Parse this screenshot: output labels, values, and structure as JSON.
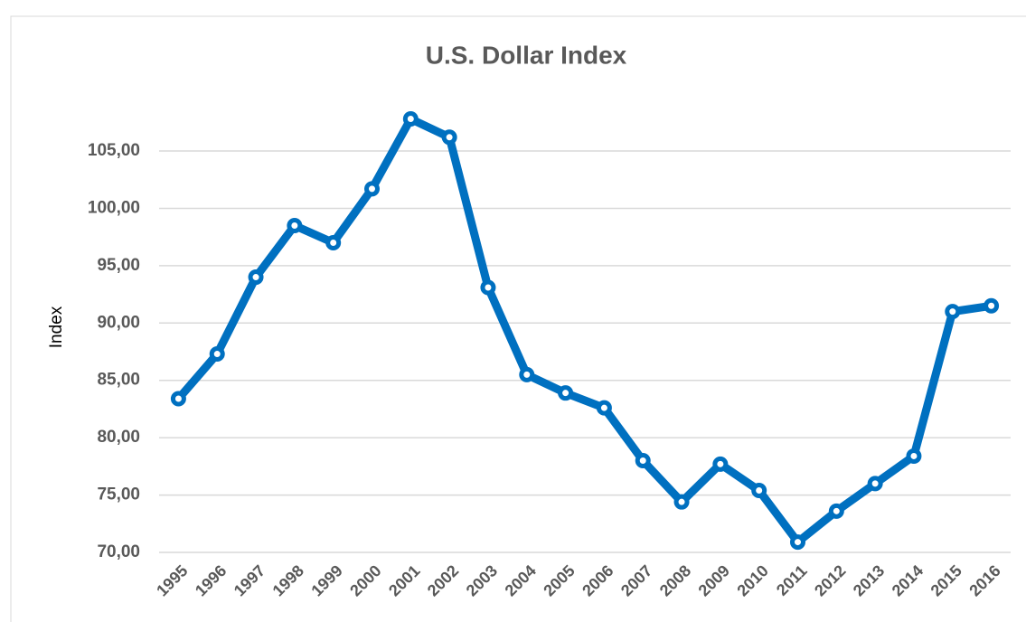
{
  "chart_data": {
    "type": "line",
    "title": "U.S. Dollar Index",
    "y_label": "Index",
    "categories": [
      "1995",
      "1996",
      "1997",
      "1998",
      "1999",
      "2000",
      "2001",
      "2002",
      "2003",
      "2004",
      "2005",
      "2006",
      "2007",
      "2008",
      "2009",
      "2010",
      "2011",
      "2012",
      "2013",
      "2014",
      "2015",
      "2016"
    ],
    "series": [
      {
        "name": "Index",
        "color": "#0070c0",
        "values": [
          83.4,
          87.3,
          94.0,
          98.5,
          97.0,
          101.7,
          107.8,
          106.2,
          93.1,
          85.5,
          83.9,
          82.6,
          78.0,
          74.4,
          77.7,
          75.4,
          70.9,
          73.6,
          76.0,
          78.4,
          91.0,
          91.5
        ]
      }
    ],
    "ylim": [
      70,
      110
    ],
    "yticks": [
      {
        "value": 70,
        "label": "70,00"
      },
      {
        "value": 75,
        "label": "75,00"
      },
      {
        "value": 80,
        "label": "80,00"
      },
      {
        "value": 85,
        "label": "85,00"
      },
      {
        "value": 90,
        "label": "90,00"
      },
      {
        "value": 95,
        "label": "95,00"
      },
      {
        "value": 100,
        "label": "100,00"
      },
      {
        "value": 105,
        "label": "105,00"
      }
    ],
    "grid": true
  }
}
